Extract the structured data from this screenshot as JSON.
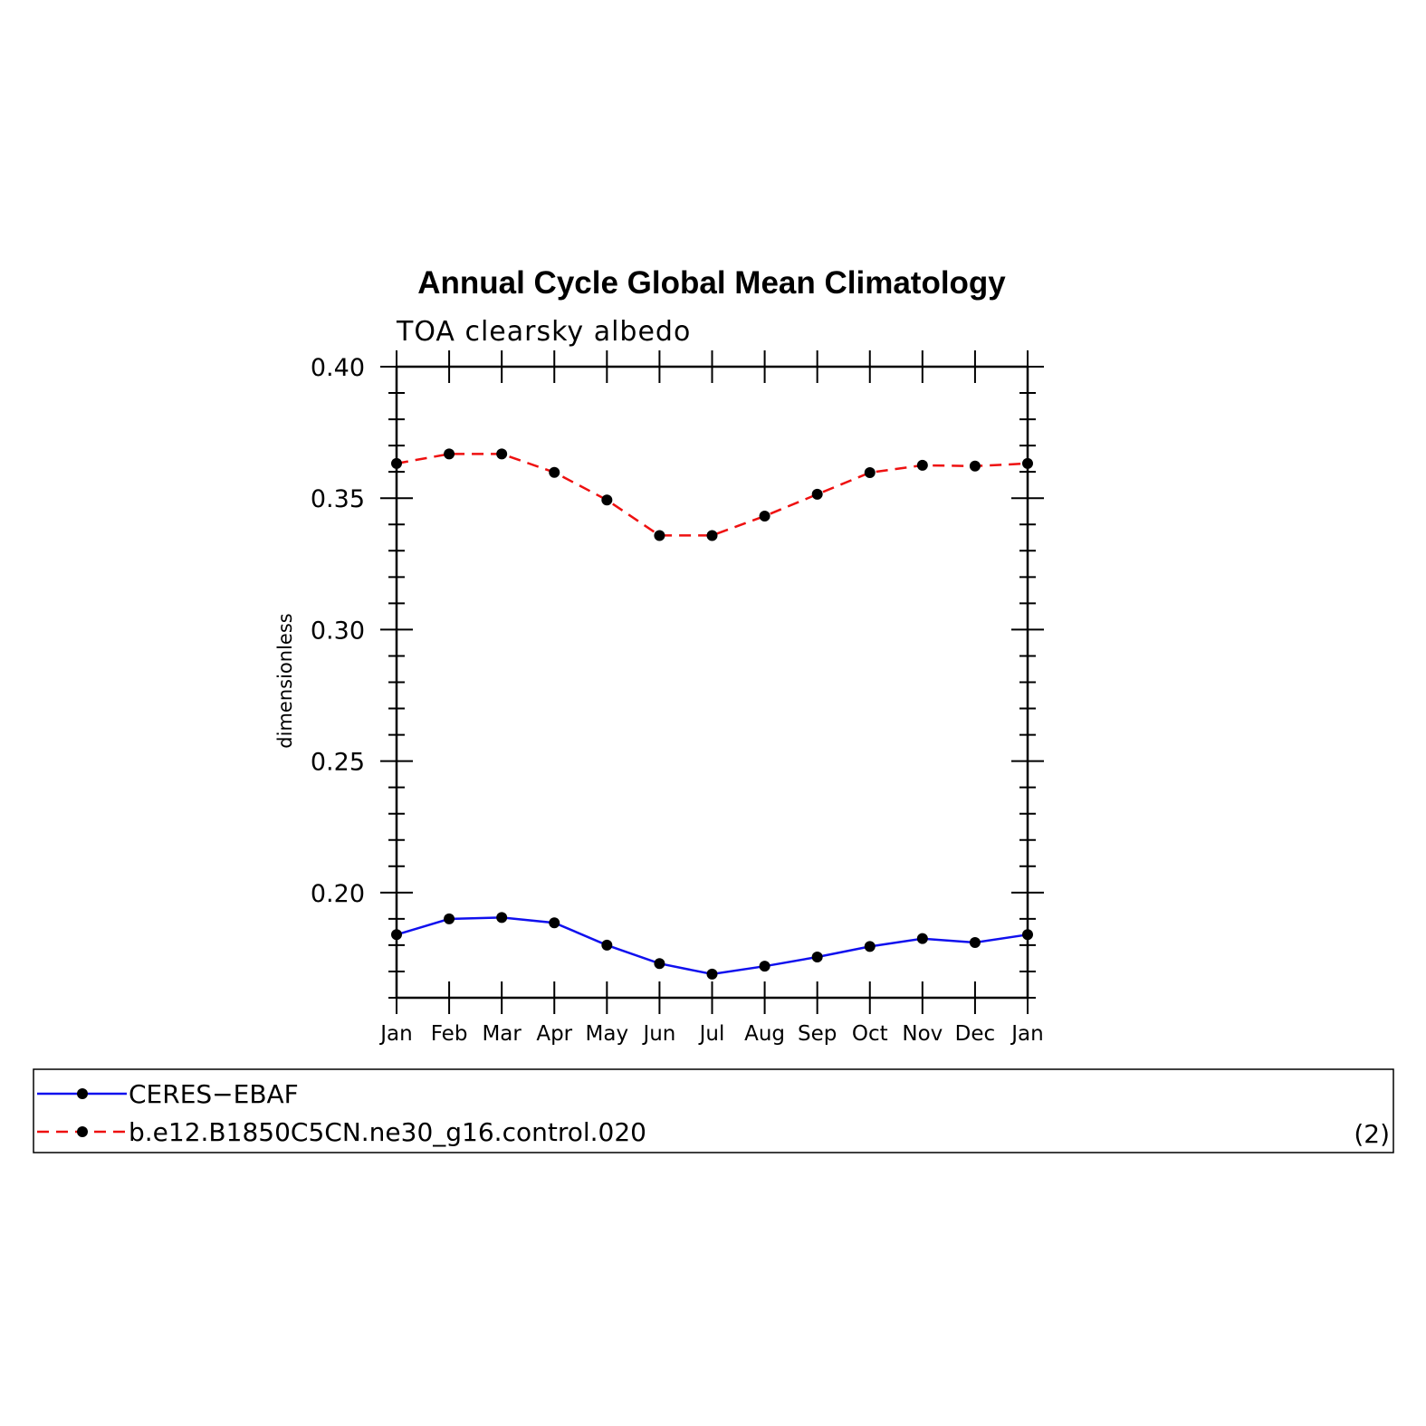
{
  "chart_data": {
    "type": "line",
    "title": "Annual Cycle Global Mean Climatology",
    "subtitle": "TOA clearsky albedo",
    "ylabel": "dimensionless",
    "xlabel": "",
    "categories": [
      "Jan",
      "Feb",
      "Mar",
      "Apr",
      "May",
      "Jun",
      "Jul",
      "Aug",
      "Sep",
      "Oct",
      "Nov",
      "Dec",
      "Jan"
    ],
    "ylim": [
      0.16,
      0.4
    ],
    "yticks": [
      0.2,
      0.25,
      0.3,
      0.35,
      0.4
    ],
    "ytick_labels": [
      "0.20",
      "0.25",
      "0.30",
      "0.35",
      "0.40"
    ],
    "grid": false,
    "legend_position": "bottom",
    "series": [
      {
        "name": "CERES−EBAF",
        "color": "#1010ee",
        "dashed": false,
        "values": [
          0.184,
          0.19,
          0.1905,
          0.1885,
          0.18,
          0.173,
          0.169,
          0.172,
          0.1755,
          0.1795,
          0.1825,
          0.181,
          0.184
        ]
      },
      {
        "name": "b.e12.B1850C5CN.ne30_g16.control.020",
        "color": "#ee1010",
        "dashed": true,
        "values": [
          0.3632,
          0.3668,
          0.3668,
          0.3598,
          0.3493,
          0.3358,
          0.3358,
          0.3432,
          0.3515,
          0.3597,
          0.3625,
          0.3622,
          0.3632
        ]
      }
    ],
    "panel_label": "(2)"
  }
}
